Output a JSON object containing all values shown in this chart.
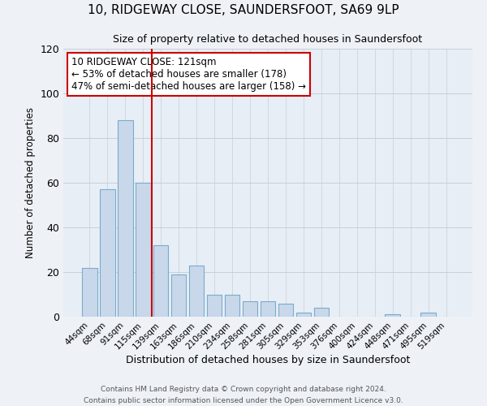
{
  "title": "10, RIDGEWAY CLOSE, SAUNDERSFOOT, SA69 9LP",
  "subtitle": "Size of property relative to detached houses in Saundersfoot",
  "xlabel": "Distribution of detached houses by size in Saundersfoot",
  "ylabel": "Number of detached properties",
  "bar_labels": [
    "44sqm",
    "68sqm",
    "91sqm",
    "115sqm",
    "139sqm",
    "163sqm",
    "186sqm",
    "210sqm",
    "234sqm",
    "258sqm",
    "281sqm",
    "305sqm",
    "329sqm",
    "353sqm",
    "376sqm",
    "400sqm",
    "424sqm",
    "448sqm",
    "471sqm",
    "495sqm",
    "519sqm"
  ],
  "bar_values": [
    22,
    57,
    88,
    60,
    32,
    19,
    23,
    10,
    10,
    7,
    7,
    6,
    2,
    4,
    0,
    0,
    0,
    1,
    0,
    2,
    0
  ],
  "bar_color": "#c8d8ea",
  "bar_edge_color": "#7aabcc",
  "vline_color": "#cc0000",
  "ylim": [
    0,
    120
  ],
  "yticks": [
    0,
    20,
    40,
    60,
    80,
    100,
    120
  ],
  "annotation_title": "10 RIDGEWAY CLOSE: 121sqm",
  "annotation_line1": "← 53% of detached houses are smaller (178)",
  "annotation_line2": "47% of semi-detached houses are larger (158) →",
  "annotation_box_color": "#ffffff",
  "annotation_box_edge": "#cc0000",
  "footer1": "Contains HM Land Registry data © Crown copyright and database right 2024.",
  "footer2": "Contains public sector information licensed under the Open Government Licence v3.0.",
  "bg_color": "#eef2f7",
  "plot_bg_color": "#e8eef5",
  "grid_color": "#c5cfd8"
}
